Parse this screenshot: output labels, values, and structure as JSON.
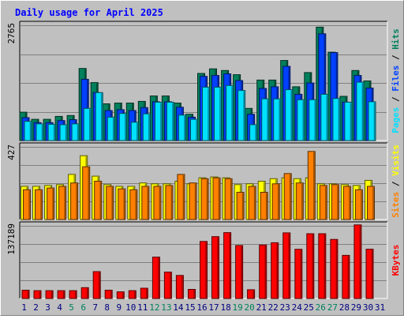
{
  "colors": {
    "background": "#c0c0c0",
    "title": "#0000ff",
    "hits": "#00805c",
    "files": "#0040ff",
    "pages": "#00e0ff",
    "visits": "#ffff00",
    "sites": "#ff8000",
    "kbytes": "#ff0000",
    "weekend_label": "#00805c",
    "weekday_label": "#000080"
  },
  "chart_data": {
    "type": "bar",
    "title": "Daily usage for April 2025",
    "categories": [
      "1",
      "2",
      "3",
      "4",
      "5",
      "6",
      "7",
      "8",
      "9",
      "10",
      "11",
      "12",
      "13",
      "14",
      "15",
      "16",
      "17",
      "18",
      "19",
      "20",
      "21",
      "22",
      "23",
      "24",
      "25",
      "26",
      "27",
      "28",
      "29",
      "30",
      "31"
    ],
    "weekend_days": [
      "5",
      "6",
      "12",
      "13",
      "19",
      "20",
      "26",
      "27"
    ],
    "panels": [
      {
        "ylabel_parts": [
          "Pages",
          "Files",
          "Hits"
        ],
        "ymax_label": "2765",
        "ylim": [
          0,
          2765
        ],
        "series": [
          {
            "name": "Hits",
            "values": [
              680,
              510,
              510,
              580,
              600,
              1730,
              1390,
              880,
              900,
              900,
              940,
              1070,
              1070,
              900,
              630,
              1610,
              1720,
              1680,
              1580,
              770,
              1450,
              1450,
              1920,
              1290,
              1630,
              2720,
              2120,
              1060,
              1680,
              1430,
              0
            ]
          },
          {
            "name": "Files",
            "values": [
              550,
              430,
              430,
              480,
              500,
              1470,
              1150,
              720,
              740,
              720,
              790,
              930,
              930,
              800,
              560,
              1540,
              1560,
              1600,
              1440,
              630,
              1250,
              1290,
              1780,
              1110,
              1380,
              2560,
              2110,
              920,
              1560,
              1260,
              0
            ]
          },
          {
            "name": "Pages",
            "values": [
              460,
              400,
              390,
              380,
              400,
              770,
              1150,
              560,
              650,
              440,
              640,
              920,
              920,
              610,
              510,
              1280,
              1280,
              1320,
              1200,
              380,
              1000,
              1000,
              1220,
              980,
              980,
              1110,
              1010,
              920,
              1400,
              930,
              0
            ]
          }
        ]
      },
      {
        "ylabel_parts": [
          "Sites",
          "Visits"
        ],
        "ymax_label": "427",
        "ylim": [
          0,
          427
        ],
        "series": [
          {
            "name": "Visits",
            "values": [
              195,
              195,
              200,
              205,
              265,
              375,
              255,
              205,
              195,
              195,
              215,
              210,
              210,
              225,
              210,
              245,
              250,
              245,
              205,
              210,
              225,
              240,
              245,
              240,
              245,
              210,
              210,
              205,
              200,
              230,
              0
            ]
          },
          {
            "name": "Sites",
            "values": [
              175,
              175,
              185,
              195,
              215,
              310,
              225,
              195,
              180,
              175,
              195,
              195,
              200,
              265,
              215,
              240,
              245,
              240,
              160,
              195,
              160,
              210,
              270,
              215,
              400,
              200,
              205,
              195,
              175,
              195,
              0
            ]
          }
        ]
      },
      {
        "ylabel_parts": [
          "KBytes"
        ],
        "ymax_label": "137189",
        "ylim": [
          0,
          137189
        ],
        "series": [
          {
            "name": "KBytes",
            "values": [
              15600,
              14700,
              14700,
              14700,
              14700,
              20400,
              50700,
              15600,
              12600,
              14700,
              19400,
              78200,
              49800,
              43600,
              17100,
              107600,
              116700,
              124300,
              100000,
              16600,
              100900,
              105300,
              123900,
              92900,
              122300,
              122300,
              111600,
              81400,
              139000,
              93100,
              0
            ]
          }
        ]
      }
    ]
  }
}
